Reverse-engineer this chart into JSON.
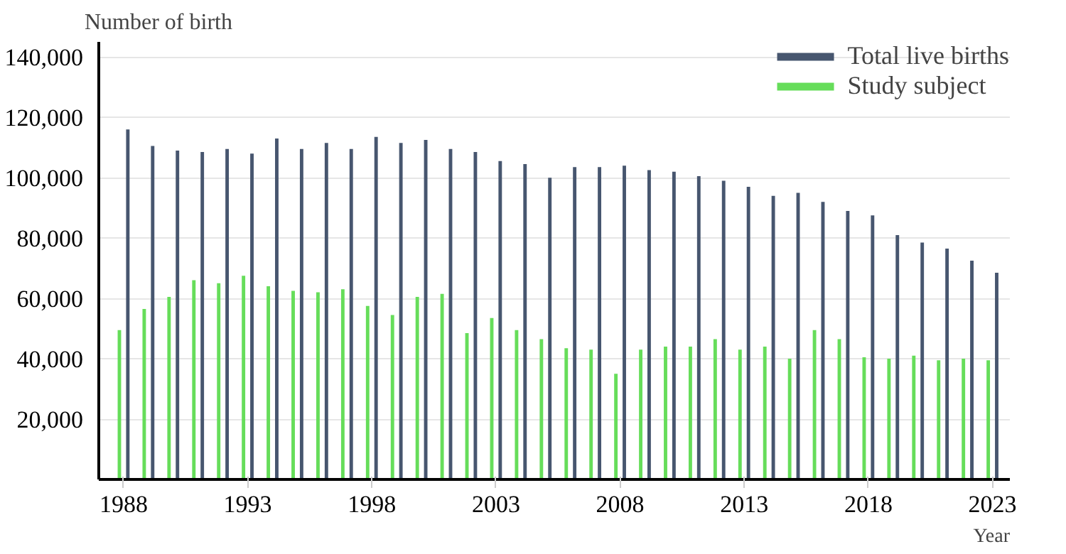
{
  "chart_data": {
    "type": "bar",
    "ylabel": "Number of birth",
    "xlabel": "Year",
    "x": [
      1988,
      1989,
      1990,
      1991,
      1992,
      1993,
      1994,
      1995,
      1996,
      1997,
      1998,
      1999,
      2000,
      2001,
      2002,
      2003,
      2004,
      2005,
      2006,
      2007,
      2008,
      2009,
      2010,
      2011,
      2012,
      2013,
      2014,
      2015,
      2016,
      2017,
      2018,
      2019,
      2020,
      2021,
      2022,
      2023
    ],
    "series": [
      {
        "name": "Total live births",
        "color": "#47566f",
        "values": [
          116000,
          110500,
          109000,
          108500,
          109500,
          108000,
          113000,
          109500,
          111500,
          109500,
          113500,
          111500,
          112500,
          109500,
          108500,
          105500,
          104500,
          100000,
          103500,
          103500,
          104000,
          102500,
          102000,
          100500,
          99000,
          97000,
          94000,
          95000,
          92000,
          89000,
          87500,
          81000,
          78500,
          76500,
          72500,
          68500
        ]
      },
      {
        "name": "Study subject",
        "color": "#66dd5a",
        "values": [
          49500,
          56500,
          60500,
          66000,
          65000,
          67500,
          64000,
          62500,
          62000,
          63000,
          57500,
          54500,
          60500,
          61500,
          48500,
          53500,
          49500,
          46500,
          43500,
          43000,
          35000,
          43000,
          44000,
          44000,
          46500,
          43000,
          44000,
          40000,
          49500,
          46500,
          40500,
          40000,
          41000,
          39500,
          40000,
          39500
        ]
      }
    ],
    "xlim": [
      1987,
      2023.7
    ],
    "xticks": [
      1988,
      1993,
      1998,
      2003,
      2008,
      2013,
      2018,
      2023
    ],
    "ylim": [
      0,
      145000
    ],
    "yticks": [
      {
        "value": 20000,
        "label": "20,000"
      },
      {
        "value": 40000,
        "label": "40,000"
      },
      {
        "value": 60000,
        "label": "60,000"
      },
      {
        "value": 80000,
        "label": "80,000"
      },
      {
        "value": 100000,
        "label": "100,000"
      },
      {
        "value": 120000,
        "label": "120,000"
      },
      {
        "value": 140000,
        "label": "140,000"
      }
    ],
    "grid": "y",
    "legend": "top right"
  }
}
